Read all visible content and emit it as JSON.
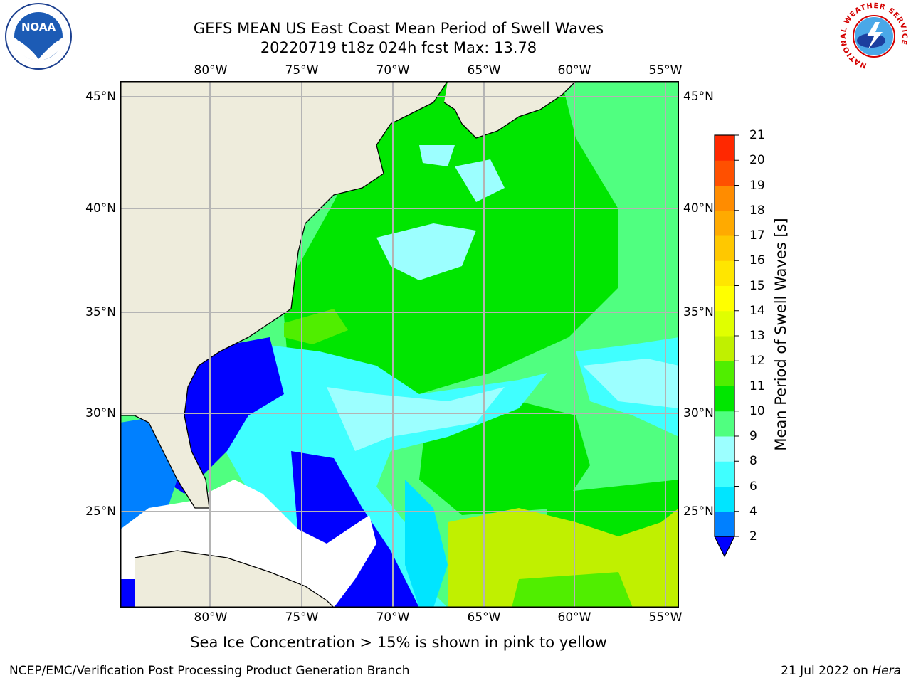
{
  "title_line1": "GEFS MEAN US East Coast Mean Period of Swell Waves",
  "title_line2": "20220719 t18z 024h fcst   Max: 13.78",
  "lon_labels": [
    "80°W",
    "75°W",
    "70°W",
    "65°W",
    "60°W",
    "55°W"
  ],
  "lat_labels": [
    "45°N",
    "40°N",
    "35°N",
    "30°N",
    "25°N"
  ],
  "colorbar": {
    "label": "Mean Period of Swell Waves [s]",
    "ticks": [
      "2",
      "4",
      "6",
      "8",
      "9",
      "10",
      "11",
      "12",
      "13",
      "14",
      "15",
      "16",
      "17",
      "18",
      "19",
      "20",
      "21"
    ],
    "colors": [
      "#0080ff",
      "#00e5ff",
      "#40ffff",
      "#9cffff",
      "#50ff80",
      "#00e600",
      "#50ee00",
      "#c0f000",
      "#e0ff00",
      "#ffff00",
      "#ffe600",
      "#ffc800",
      "#ffaa00",
      "#ff8c00",
      "#ff5000",
      "#ff2800",
      "#ff0000"
    ],
    "under_color": "#0000ff"
  },
  "sea_ice_note": "Sea Ice Concentration > 15% is shown in pink to yellow",
  "footer_left": "NCEP/EMC/Verification Post Processing Product Generation Branch",
  "footer_date": "21 Jul 2022 on",
  "footer_host": "Hera",
  "logos": {
    "left": "NOAA",
    "right_text": "NATIONAL WEATHER SERVICE"
  },
  "map_colors": {
    "land": "#eeecdc",
    "grid": "#b4b4b4",
    "coast": "#000000"
  }
}
